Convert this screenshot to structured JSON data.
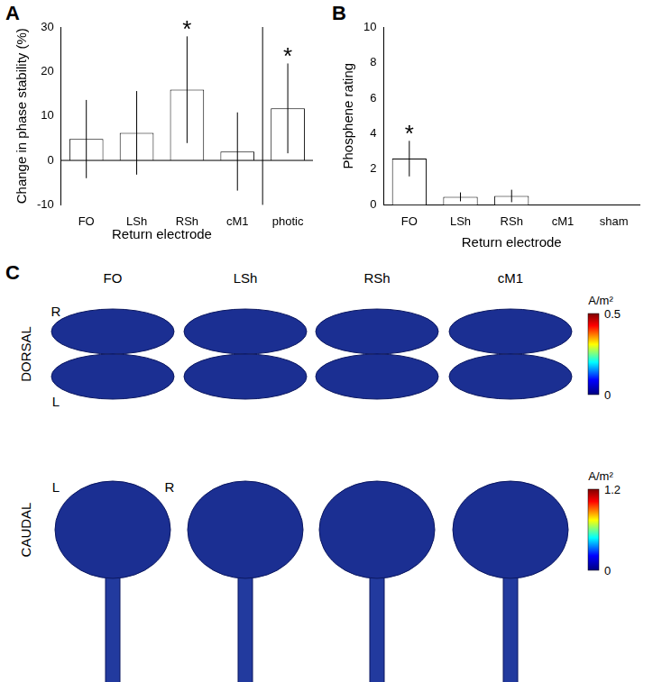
{
  "chart_data": [
    {
      "type": "bar",
      "panel_label": "A",
      "categories": [
        "FO",
        "LSh",
        "RSh",
        "cM1",
        "photic"
      ],
      "values": [
        4.8,
        6.2,
        15.9,
        2.0,
        11.7
      ],
      "errors": [
        8.8,
        9.4,
        12.0,
        8.8,
        10.1
      ],
      "color": "#ffffff",
      "xlabel": "Return electrode",
      "ylabel": "Change in phase stability (%)",
      "ylim": [
        -10,
        30
      ],
      "yticks": [
        -10,
        0,
        10,
        20,
        30
      ],
      "grid": false,
      "annotations": [
        {
          "category": "RSh",
          "text": "*"
        },
        {
          "category": "photic",
          "text": "*"
        }
      ]
    },
    {
      "type": "bar",
      "panel_label": "B",
      "categories": [
        "FO",
        "LSh",
        "RSh",
        "cM1",
        "sham"
      ],
      "values": [
        2.6,
        0.45,
        0.5,
        0,
        0
      ],
      "errors": [
        1.0,
        0.25,
        0.35,
        0,
        0
      ],
      "color": "#ffffff",
      "xlabel": "Return electrode",
      "ylabel": "Phosphene rating",
      "ylim": [
        0,
        10
      ],
      "yticks": [
        0,
        2,
        4,
        6,
        8,
        10
      ],
      "grid": false,
      "annotations": [
        {
          "category": "FO",
          "text": "*"
        }
      ]
    }
  ],
  "panel_c": {
    "panel_label": "C",
    "columns": [
      "FO",
      "LSh",
      "RSh",
      "cM1"
    ],
    "rows": [
      {
        "label": "DORSAL",
        "orientation": [
          "R",
          "L"
        ],
        "colorbar": {
          "unit": "A/m²",
          "range": [
            0,
            0.5
          ],
          "ticks": [
            0,
            0.5
          ]
        }
      },
      {
        "label": "CAUDAL",
        "orientation": [
          "L",
          "R"
        ],
        "colorbar": {
          "unit": "A/m²",
          "range": [
            0,
            1.2
          ],
          "ticks": [
            0,
            1.2
          ]
        }
      }
    ]
  }
}
